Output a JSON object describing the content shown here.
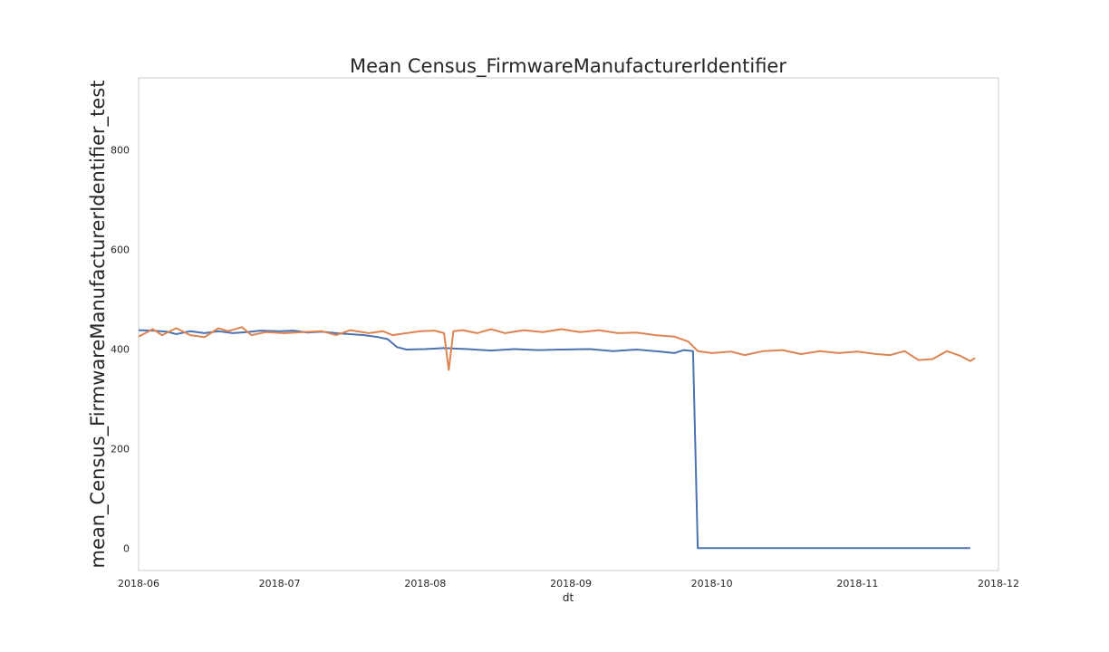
{
  "chart_data": {
    "type": "line",
    "title": "Mean Census_FirmwareManufacturerIdentifier",
    "xlabel": "dt",
    "ylabel": "mean_Census_FirmwareManufacturerIdentifier_test",
    "xlim": [
      "2018-06-01",
      "2018-12-01"
    ],
    "ylim": [
      -45,
      945
    ],
    "grid": false,
    "x_ticks": [
      "2018-06",
      "2018-07",
      "2018-08",
      "2018-09",
      "2018-10",
      "2018-11",
      "2018-12"
    ],
    "y_ticks": [
      0,
      200,
      400,
      600,
      800
    ],
    "series": [
      {
        "color": "#4c72b0",
        "points": [
          [
            "2018-06-01",
            438
          ],
          [
            "2018-06-04",
            437
          ],
          [
            "2018-06-07",
            435
          ],
          [
            "2018-06-09",
            430
          ],
          [
            "2018-06-12",
            436
          ],
          [
            "2018-06-15",
            432
          ],
          [
            "2018-06-18",
            436
          ],
          [
            "2018-06-21",
            432
          ],
          [
            "2018-06-24",
            434
          ],
          [
            "2018-06-27",
            437
          ],
          [
            "2018-07-01",
            436
          ],
          [
            "2018-07-04",
            437
          ],
          [
            "2018-07-07",
            433
          ],
          [
            "2018-07-10",
            435
          ],
          [
            "2018-07-13",
            432
          ],
          [
            "2018-07-16",
            430
          ],
          [
            "2018-07-19",
            428
          ],
          [
            "2018-07-22",
            424
          ],
          [
            "2018-07-24",
            420
          ],
          [
            "2018-07-26",
            404
          ],
          [
            "2018-07-28",
            399
          ],
          [
            "2018-08-01",
            400
          ],
          [
            "2018-08-05",
            402
          ],
          [
            "2018-08-10",
            400
          ],
          [
            "2018-08-15",
            397
          ],
          [
            "2018-08-20",
            400
          ],
          [
            "2018-08-25",
            398
          ],
          [
            "2018-08-30",
            399
          ],
          [
            "2018-09-05",
            400
          ],
          [
            "2018-09-10",
            396
          ],
          [
            "2018-09-15",
            399
          ],
          [
            "2018-09-20",
            395
          ],
          [
            "2018-09-23",
            392
          ],
          [
            "2018-09-25",
            398
          ],
          [
            "2018-09-27",
            396
          ],
          [
            "2018-09-28",
            0
          ],
          [
            "2018-10-10",
            0
          ],
          [
            "2018-10-25",
            0
          ],
          [
            "2018-11-10",
            0
          ],
          [
            "2018-11-22",
            0
          ],
          [
            "2018-11-25",
            0
          ]
        ]
      },
      {
        "color": "#dd8452",
        "points": [
          [
            "2018-06-01",
            425
          ],
          [
            "2018-06-04",
            440
          ],
          [
            "2018-06-06",
            428
          ],
          [
            "2018-06-09",
            442
          ],
          [
            "2018-06-12",
            428
          ],
          [
            "2018-06-15",
            424
          ],
          [
            "2018-06-18",
            442
          ],
          [
            "2018-06-20",
            436
          ],
          [
            "2018-06-23",
            444
          ],
          [
            "2018-06-25",
            428
          ],
          [
            "2018-06-28",
            434
          ],
          [
            "2018-07-02",
            432
          ],
          [
            "2018-07-06",
            434
          ],
          [
            "2018-07-10",
            436
          ],
          [
            "2018-07-13",
            428
          ],
          [
            "2018-07-16",
            438
          ],
          [
            "2018-07-20",
            432
          ],
          [
            "2018-07-23",
            436
          ],
          [
            "2018-07-25",
            428
          ],
          [
            "2018-07-28",
            432
          ],
          [
            "2018-07-31",
            436
          ],
          [
            "2018-08-03",
            437
          ],
          [
            "2018-08-05",
            432
          ],
          [
            "2018-08-06",
            358
          ],
          [
            "2018-08-07",
            436
          ],
          [
            "2018-08-09",
            438
          ],
          [
            "2018-08-12",
            432
          ],
          [
            "2018-08-15",
            440
          ],
          [
            "2018-08-18",
            432
          ],
          [
            "2018-08-22",
            438
          ],
          [
            "2018-08-26",
            434
          ],
          [
            "2018-08-30",
            440
          ],
          [
            "2018-09-03",
            434
          ],
          [
            "2018-09-07",
            438
          ],
          [
            "2018-09-11",
            432
          ],
          [
            "2018-09-15",
            433
          ],
          [
            "2018-09-19",
            428
          ],
          [
            "2018-09-23",
            425
          ],
          [
            "2018-09-26",
            415
          ],
          [
            "2018-09-28",
            396
          ],
          [
            "2018-10-01",
            392
          ],
          [
            "2018-10-05",
            395
          ],
          [
            "2018-10-08",
            388
          ],
          [
            "2018-10-12",
            396
          ],
          [
            "2018-10-16",
            398
          ],
          [
            "2018-10-20",
            390
          ],
          [
            "2018-10-24",
            396
          ],
          [
            "2018-10-28",
            392
          ],
          [
            "2018-11-01",
            395
          ],
          [
            "2018-11-05",
            390
          ],
          [
            "2018-11-08",
            388
          ],
          [
            "2018-11-11",
            396
          ],
          [
            "2018-11-14",
            378
          ],
          [
            "2018-11-17",
            380
          ],
          [
            "2018-11-20",
            396
          ],
          [
            "2018-11-23",
            386
          ],
          [
            "2018-11-25",
            376
          ],
          [
            "2018-11-26",
            382
          ]
        ]
      }
    ]
  }
}
